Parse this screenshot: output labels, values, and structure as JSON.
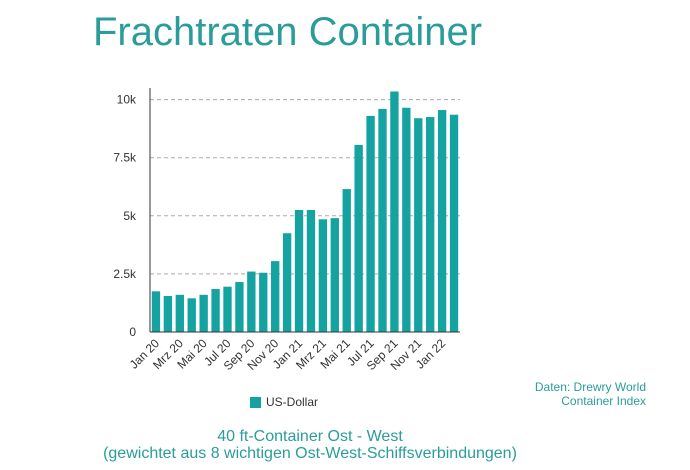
{
  "chart_data": {
    "type": "bar",
    "title": "Frachtraten Container",
    "subtitle_line1": "40 ft-Container Ost - West",
    "subtitle_line2": "(gewichtet aus 8 wichtigen Ost-West-Schiffsverbindungen)",
    "source_line1": "Daten: Drewry World",
    "source_line2": "Container Index",
    "categories": [
      "Jan 20",
      "Feb 20",
      "Mrz 20",
      "Apr 20",
      "Mai 20",
      "Jun 20",
      "Jul 20",
      "Aug 20",
      "Sep 20",
      "Okt 20",
      "Nov 20",
      "Dez 20",
      "Jan 21",
      "Feb 21",
      "Mrz 21",
      "Apr 21",
      "Mai 21",
      "Jun 21",
      "Jul 21",
      "Aug 21",
      "Sep 21",
      "Okt 21",
      "Nov 21",
      "Dez 21",
      "Jan 22",
      "Feb 22"
    ],
    "x_tick_labels": [
      "Jan 20",
      "Mrz 20",
      "Mai 20",
      "Jul 20",
      "Sep 20",
      "Nov 20",
      "Jan 21",
      "Mrz 21",
      "Mai 21",
      "Jul 21",
      "Sep 21",
      "Nov 21",
      "Jan 22"
    ],
    "series": [
      {
        "name": "US-Dollar",
        "color": "#14a3a0",
        "values": [
          1750,
          1550,
          1600,
          1450,
          1600,
          1850,
          1950,
          2150,
          2600,
          2550,
          3050,
          4250,
          5250,
          5250,
          4850,
          4900,
          6150,
          8050,
          9300,
          9600,
          10350,
          9650,
          9200,
          9250,
          9550,
          9350
        ]
      }
    ],
    "y_ticks": [
      0,
      2500,
      5000,
      7500,
      10000
    ],
    "y_tick_labels": [
      "0",
      "2.5k",
      "5k",
      "7.5k",
      "10k"
    ],
    "ylim": [
      0,
      10500
    ],
    "grid": true,
    "xlabel": "",
    "ylabel": "",
    "legend_position": "bottom"
  }
}
